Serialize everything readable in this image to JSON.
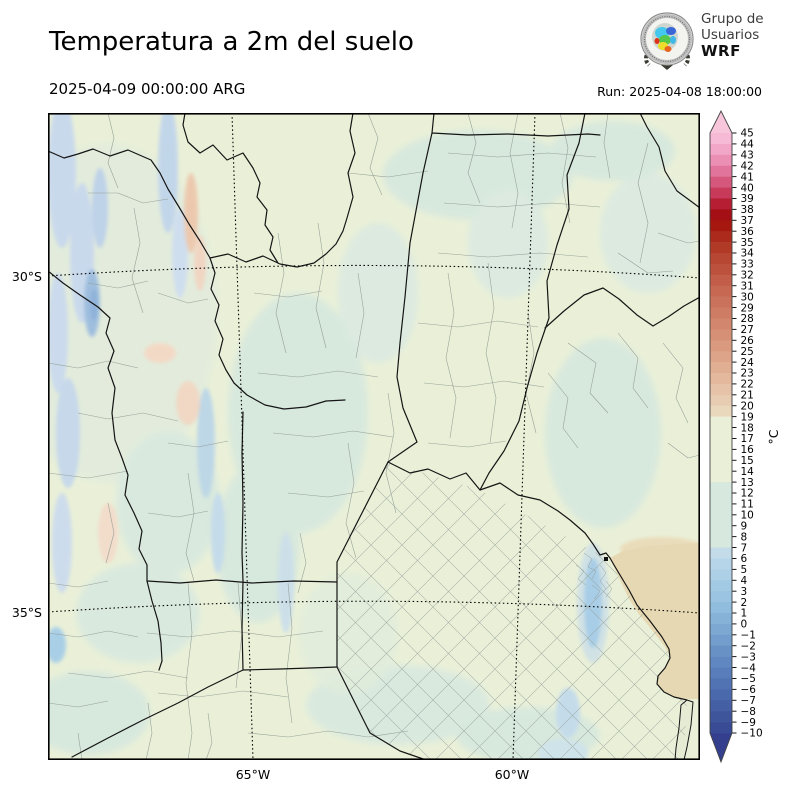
{
  "header": {
    "title": "Temperatura a 2m del suelo",
    "valid_time": "2025-04-09 00:00:00 ARG",
    "run_label": "Run: 2025-04-08 18:00:00",
    "logo": {
      "line1": "Grupo de",
      "line2": "Usuarios",
      "line3": "WRF"
    }
  },
  "map": {
    "lat_labels": [
      {
        "text": "30°S"
      },
      {
        "text": "35°S"
      }
    ],
    "lon_labels": [
      {
        "text": "65°W"
      },
      {
        "text": "60°W"
      }
    ],
    "fill_colors": {
      "land_base": "#eaf0d8",
      "cool_teal": "#d7e8de",
      "cold_blue": "#c9d9ec",
      "warm_sand": "#e5d8b2",
      "warm_salmon": "#eed2ba"
    }
  },
  "colorbar": {
    "unit": "°C",
    "over_color": "#f7c6da",
    "under_color": "#343f8d",
    "tick_labels": [
      "45",
      "44",
      "43",
      "42",
      "41",
      "40",
      "39",
      "38",
      "37",
      "36",
      "35",
      "34",
      "33",
      "32",
      "31",
      "30",
      "29",
      "28",
      "27",
      "26",
      "25",
      "24",
      "23",
      "22",
      "21",
      "20",
      "19",
      "18",
      "17",
      "16",
      "15",
      "14",
      "13",
      "12",
      "11",
      "10",
      "9",
      "8",
      "7",
      "6",
      "5",
      "4",
      "3",
      "2",
      "1",
      "0",
      "−1",
      "−2",
      "−3",
      "−4",
      "−5",
      "−6",
      "−7",
      "−8",
      "−9",
      "−10"
    ],
    "cell_colors": [
      "#f6bad6",
      "#f2a6c8",
      "#ec8fb4",
      "#e1749a",
      "#d5587c",
      "#c73a5a",
      "#b51e33",
      "#a40f16",
      "#a5170f",
      "#ab2a1b",
      "#b13a27",
      "#b74633",
      "#bc523e",
      "#c15d48",
      "#c66852",
      "#ca725b",
      "#ce7c64",
      "#d2866d",
      "#d69076",
      "#d99a80",
      "#dda489",
      "#e0ae93",
      "#e3b89d",
      "#e6c2a8",
      "#e8ccb2",
      "#ead8bd",
      "#eaf0d7",
      "#eaf0d7",
      "#eaf0d7",
      "#eaf0d7",
      "#eaf0d7",
      "#eaf0d7",
      "#d7e8de",
      "#d7e8de",
      "#d7e8de",
      "#d7e8de",
      "#d7e8de",
      "#d7e8de",
      "#c4dbea",
      "#b7d5e9",
      "#add0e7",
      "#a3cae4",
      "#9ac4e1",
      "#90bcdd",
      "#86b2d8",
      "#7ca8d2",
      "#729dcc",
      "#6892c6",
      "#6087c0",
      "#587dba",
      "#5173b4",
      "#4a69ac",
      "#445fa4",
      "#3e559c",
      "#384b94"
    ]
  }
}
